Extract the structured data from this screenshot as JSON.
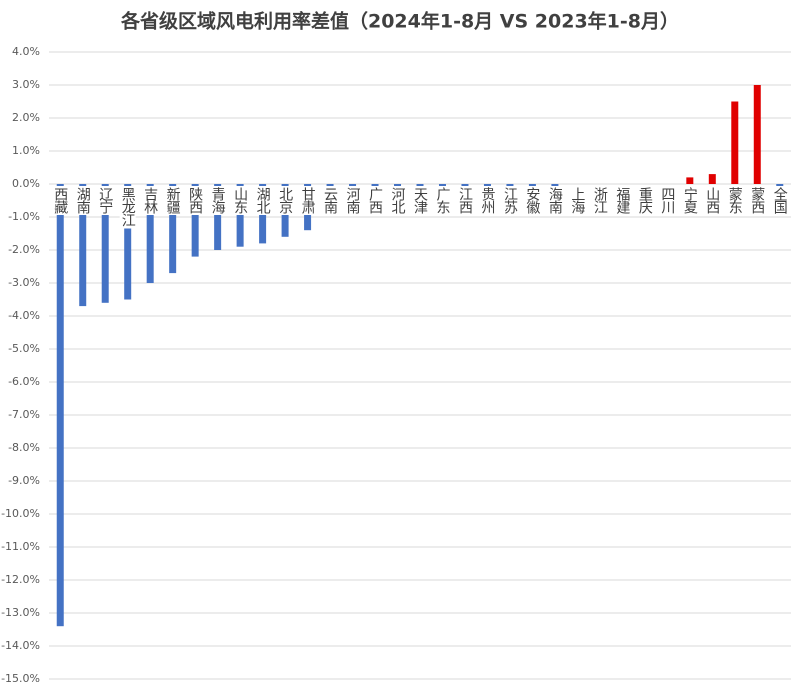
{
  "chart_data": {
    "type": "bar",
    "title": "各省级区域风电利用率差值（2024年1-8月 VS 2023年1-8月）",
    "categories": [
      "西藏",
      "湖南",
      "辽宁",
      "黑龙江",
      "吉林",
      "新疆",
      "陕西",
      "青海",
      "山东",
      "湖北",
      "北京",
      "甘肃",
      "云南",
      "河南",
      "广西",
      "河北",
      "天津",
      "广东",
      "江西",
      "贵州",
      "江苏",
      "安徽",
      "海南",
      "上海",
      "浙江",
      "福建",
      "重庆",
      "四川",
      "宁夏",
      "山西",
      "蒙东",
      "蒙西",
      "全国"
    ],
    "values": [
      -13.4,
      -3.7,
      -3.6,
      -3.5,
      -3.0,
      -2.7,
      -2.2,
      -2.0,
      -1.9,
      -1.8,
      -1.6,
      -1.4,
      -0.3,
      -0.3,
      -0.3,
      -0.3,
      -0.3,
      -0.3,
      -0.3,
      -0.1,
      -0.1,
      -0.1,
      -0.1,
      0,
      0,
      0,
      0,
      0,
      0.2,
      0.3,
      2.5,
      3.0,
      -0.3
    ],
    "colors": [
      "#4472c4",
      "#4472c4",
      "#4472c4",
      "#4472c4",
      "#4472c4",
      "#4472c4",
      "#4472c4",
      "#4472c4",
      "#4472c4",
      "#4472c4",
      "#4472c4",
      "#4472c4",
      "#4472c4",
      "#4472c4",
      "#4472c4",
      "#4472c4",
      "#4472c4",
      "#4472c4",
      "#4472c4",
      "#4472c4",
      "#4472c4",
      "#4472c4",
      "#4472c4",
      "#4472c4",
      "#4472c4",
      "#4472c4",
      "#4472c4",
      "#4472c4",
      "#e00000",
      "#e00000",
      "#e00000",
      "#e00000",
      "#4472c4"
    ],
    "ylim": [
      -15,
      4
    ],
    "yticks": [
      {
        "value": 4,
        "label": "4.0%"
      },
      {
        "value": 3,
        "label": "3.0%"
      },
      {
        "value": 2,
        "label": "2.0%"
      },
      {
        "value": 1,
        "label": "1.0%"
      },
      {
        "value": 0,
        "label": "0.0%"
      },
      {
        "value": -1,
        "label": "-1.0%"
      },
      {
        "value": -2,
        "label": "-2.0%"
      },
      {
        "value": -3,
        "label": "-3.0%"
      },
      {
        "value": -4,
        "label": "-4.0%"
      },
      {
        "value": -5,
        "label": "-5.0%"
      },
      {
        "value": -6,
        "label": "-6.0%"
      },
      {
        "value": -7,
        "label": "-7.0%"
      },
      {
        "value": -8,
        "label": "-8.0%"
      },
      {
        "value": -9,
        "label": "-9.0%"
      },
      {
        "value": -10,
        "label": "-10.0%"
      },
      {
        "value": -11,
        "label": "-11.0%"
      },
      {
        "value": -12,
        "label": "-12.0%"
      },
      {
        "value": -13,
        "label": "-13.0%"
      },
      {
        "value": -14,
        "label": "-14.0%"
      },
      {
        "value": -15,
        "label": "-15.0%"
      }
    ],
    "grid": true
  }
}
